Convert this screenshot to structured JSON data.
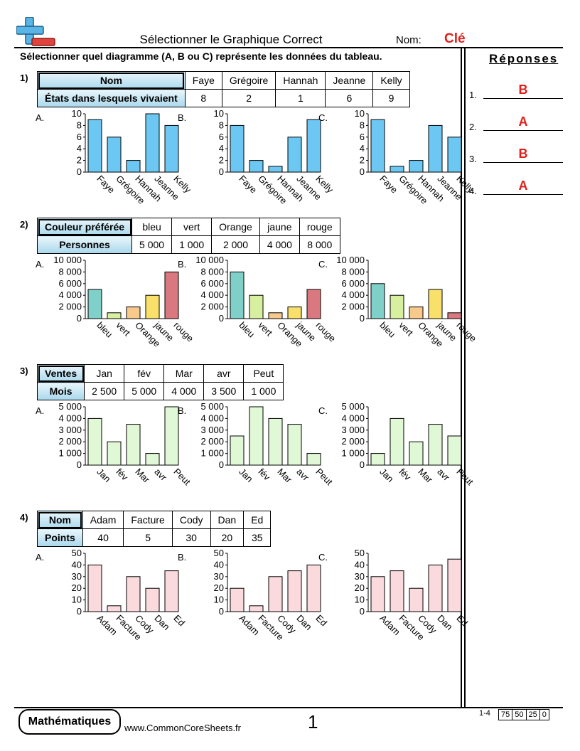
{
  "header": {
    "title": "Sélectionner le Graphique Correct",
    "name_label": "Nom:",
    "name_value": "Clé",
    "instructions": "Sélectionner quel diagramme (A, B ou C) représente les données du tableau."
  },
  "answers": {
    "heading": "Réponses",
    "items": [
      {
        "num": "1.",
        "value": "B"
      },
      {
        "num": "2.",
        "value": "A"
      },
      {
        "num": "3.",
        "value": "B"
      },
      {
        "num": "4.",
        "value": "A"
      }
    ]
  },
  "problems": [
    {
      "num": "1)",
      "row1_label": "Nom",
      "row2_label": "États dans lesquels vivaient",
      "categories": [
        "Faye",
        "Grégoire",
        "Hannah",
        "Jeanne",
        "Kelly"
      ],
      "values": [
        "8",
        "2",
        "1",
        "6",
        "9"
      ]
    },
    {
      "num": "2)",
      "row1_label": "Couleur préférée",
      "row2_label": "Personnes",
      "categories": [
        "bleu",
        "vert",
        "Orange",
        "jaune",
        "rouge"
      ],
      "values": [
        "5 000",
        "1 000",
        "2 000",
        "4 000",
        "8 000"
      ]
    },
    {
      "num": "3)",
      "row1_label": "Ventes",
      "row2_label": "Mois",
      "categories": [
        "Jan",
        "fév",
        "Mar",
        "avr",
        "Peut"
      ],
      "values": [
        "2 500",
        "5 000",
        "4 000",
        "3 500",
        "1 000"
      ]
    },
    {
      "num": "4)",
      "row1_label": "Nom",
      "row2_label": "Points",
      "categories": [
        "Adam",
        "Facture",
        "Cody",
        "Dan",
        "Ed"
      ],
      "values": [
        "40",
        "5",
        "30",
        "20",
        "35"
      ]
    }
  ],
  "option_labels": [
    "A.",
    "B.",
    "C."
  ],
  "chart_data": [
    {
      "type": "bar",
      "problem": 1,
      "option": "A",
      "categories": [
        "Faye",
        "Grégoire",
        "Hannah",
        "Jeanne",
        "Kelly"
      ],
      "values": [
        9,
        6,
        2,
        10,
        8
      ],
      "ylim": [
        0,
        10
      ],
      "yticks": [
        "0",
        "2",
        "4",
        "6",
        "8",
        "10"
      ],
      "colors": [
        "#6cc8f2",
        "#6cc8f2",
        "#6cc8f2",
        "#6cc8f2",
        "#6cc8f2"
      ]
    },
    {
      "type": "bar",
      "problem": 1,
      "option": "B",
      "categories": [
        "Faye",
        "Grégoire",
        "Hannah",
        "Jeanne",
        "Kelly"
      ],
      "values": [
        8,
        2,
        1,
        6,
        9
      ],
      "ylim": [
        0,
        10
      ],
      "yticks": [
        "0",
        "2",
        "4",
        "6",
        "8",
        "10"
      ],
      "colors": [
        "#6cc8f2",
        "#6cc8f2",
        "#6cc8f2",
        "#6cc8f2",
        "#6cc8f2"
      ]
    },
    {
      "type": "bar",
      "problem": 1,
      "option": "C",
      "categories": [
        "Faye",
        "Grégoire",
        "Hannah",
        "Jeanne",
        "Kelly"
      ],
      "values": [
        9,
        1,
        2,
        8,
        6
      ],
      "ylim": [
        0,
        10
      ],
      "yticks": [
        "0",
        "2",
        "4",
        "6",
        "8",
        "10"
      ],
      "colors": [
        "#6cc8f2",
        "#6cc8f2",
        "#6cc8f2",
        "#6cc8f2",
        "#6cc8f2"
      ]
    },
    {
      "type": "bar",
      "problem": 2,
      "option": "A",
      "categories": [
        "bleu",
        "vert",
        "Orange",
        "jaune",
        "rouge"
      ],
      "values": [
        5000,
        1000,
        2000,
        4000,
        8000
      ],
      "ylim": [
        0,
        10000
      ],
      "yticks": [
        "0",
        "2 000",
        "4 000",
        "6 000",
        "8 000",
        "10 000"
      ],
      "colors": [
        "#7fd0c8",
        "#d6f0a0",
        "#f7c98b",
        "#f8e06a",
        "#d9787e"
      ]
    },
    {
      "type": "bar",
      "problem": 2,
      "option": "B",
      "categories": [
        "bleu",
        "vert",
        "Orange",
        "jaune",
        "rouge"
      ],
      "values": [
        8000,
        4000,
        1000,
        2000,
        5000
      ],
      "ylim": [
        0,
        10000
      ],
      "yticks": [
        "0",
        "2 000",
        "4 000",
        "6 000",
        "8 000",
        "10 000"
      ],
      "colors": [
        "#7fd0c8",
        "#d6f0a0",
        "#f7c98b",
        "#f8e06a",
        "#d9787e"
      ]
    },
    {
      "type": "bar",
      "problem": 2,
      "option": "C",
      "categories": [
        "bleu",
        "vert",
        "Orange",
        "jaune",
        "rouge"
      ],
      "values": [
        6000,
        4000,
        2000,
        5000,
        1000
      ],
      "ylim": [
        0,
        10000
      ],
      "yticks": [
        "0",
        "2 000",
        "4 000",
        "6 000",
        "8 000",
        "10 000"
      ],
      "colors": [
        "#7fd0c8",
        "#d6f0a0",
        "#f7c98b",
        "#f8e06a",
        "#d9787e"
      ]
    },
    {
      "type": "bar",
      "problem": 3,
      "option": "A",
      "categories": [
        "Jan",
        "fév",
        "Mar",
        "avr",
        "Peut"
      ],
      "values": [
        4000,
        2000,
        3500,
        1000,
        5000
      ],
      "ylim": [
        0,
        5000
      ],
      "yticks": [
        "0",
        "1 000",
        "2 000",
        "3 000",
        "4 000",
        "5 000"
      ],
      "colors": [
        "#e1f8d6",
        "#e1f8d6",
        "#e1f8d6",
        "#e1f8d6",
        "#e1f8d6"
      ]
    },
    {
      "type": "bar",
      "problem": 3,
      "option": "B",
      "categories": [
        "Jan",
        "fév",
        "Mar",
        "avr",
        "Peut"
      ],
      "values": [
        2500,
        5000,
        4000,
        3500,
        1000
      ],
      "ylim": [
        0,
        5000
      ],
      "yticks": [
        "0",
        "1 000",
        "2 000",
        "3 000",
        "4 000",
        "5 000"
      ],
      "colors": [
        "#e1f8d6",
        "#e1f8d6",
        "#e1f8d6",
        "#e1f8d6",
        "#e1f8d6"
      ]
    },
    {
      "type": "bar",
      "problem": 3,
      "option": "C",
      "categories": [
        "Jan",
        "fév",
        "Mar",
        "avr",
        "Peut"
      ],
      "values": [
        1000,
        4000,
        2000,
        3500,
        2500
      ],
      "ylim": [
        0,
        5000
      ],
      "yticks": [
        "0",
        "1 000",
        "2 000",
        "3 000",
        "4 000",
        "5 000"
      ],
      "colors": [
        "#e1f8d6",
        "#e1f8d6",
        "#e1f8d6",
        "#e1f8d6",
        "#e1f8d6"
      ]
    },
    {
      "type": "bar",
      "problem": 4,
      "option": "A",
      "categories": [
        "Adam",
        "Facture",
        "Cody",
        "Dan",
        "Ed"
      ],
      "values": [
        40,
        5,
        30,
        20,
        35
      ],
      "ylim": [
        0,
        50
      ],
      "yticks": [
        "0",
        "10",
        "20",
        "30",
        "40",
        "50"
      ],
      "colors": [
        "#fadadd",
        "#fadadd",
        "#fadadd",
        "#fadadd",
        "#fadadd"
      ]
    },
    {
      "type": "bar",
      "problem": 4,
      "option": "B",
      "categories": [
        "Adam",
        "Facture",
        "Cody",
        "Dan",
        "Ed"
      ],
      "values": [
        20,
        5,
        30,
        35,
        40
      ],
      "ylim": [
        0,
        50
      ],
      "yticks": [
        "0",
        "10",
        "20",
        "30",
        "40",
        "50"
      ],
      "colors": [
        "#fadadd",
        "#fadadd",
        "#fadadd",
        "#fadadd",
        "#fadadd"
      ]
    },
    {
      "type": "bar",
      "problem": 4,
      "option": "C",
      "categories": [
        "Adam",
        "Facture",
        "Cody",
        "Dan",
        "Ed"
      ],
      "values": [
        30,
        35,
        20,
        40,
        45
      ],
      "ylim": [
        0,
        50
      ],
      "yticks": [
        "0",
        "10",
        "20",
        "30",
        "40",
        "50"
      ],
      "colors": [
        "#fadadd",
        "#fadadd",
        "#fadadd",
        "#fadadd",
        "#fadadd"
      ]
    }
  ],
  "footer": {
    "brand": "Mathématiques",
    "url": "www.CommonCoreSheets.fr",
    "page": "1",
    "score_range": "1-4",
    "scores": [
      "75",
      "50",
      "25",
      "0"
    ]
  }
}
